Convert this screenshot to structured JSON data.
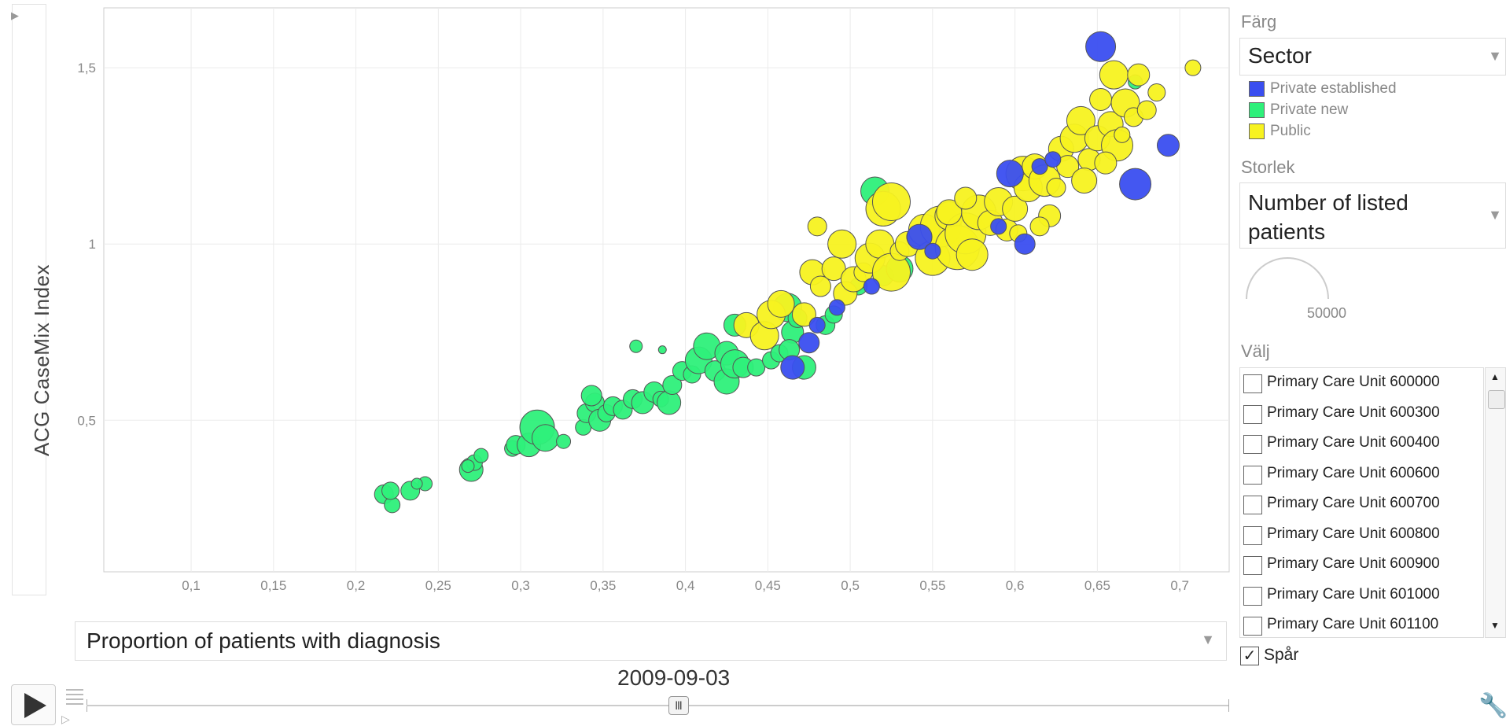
{
  "y_axis_selector": {
    "label": "ACG CaseMix Index",
    "arrow": "▶"
  },
  "x_axis_selector": {
    "label": "Proportion of patients with diagnosis",
    "arrow": "▼"
  },
  "time": {
    "date": "2009-09-03",
    "slider_thumb": "Ⅲ"
  },
  "color_panel": {
    "label": "Färg",
    "selected": "Sector",
    "arrow": "▼",
    "legend": [
      {
        "name": "Private established",
        "color": "#3a4ef0"
      },
      {
        "name": "Private new",
        "color": "#2ef07a"
      },
      {
        "name": "Public",
        "color": "#f7f220"
      }
    ]
  },
  "size_panel": {
    "label": "Storlek",
    "selected": "Number of listed patients",
    "arrow": "▼",
    "reference_value": "50000"
  },
  "select_panel": {
    "label": "Välj",
    "items": [
      "Primary Care Unit 600000",
      "Primary Care Unit 600300",
      "Primary Care Unit 600400",
      "Primary Care Unit 600600",
      "Primary Care Unit 600700",
      "Primary Care Unit 600800",
      "Primary Care Unit 600900",
      "Primary Care Unit 601000",
      "Primary Care Unit 601100"
    ],
    "scroll_up": "▲",
    "scroll_down": "▼"
  },
  "trails": {
    "label": "Spår",
    "checked": "✓"
  },
  "tools_icon": "wrench-icon",
  "chart_data": {
    "type": "scatter",
    "title": "",
    "xlabel": "Proportion of patients with diagnosis",
    "ylabel": "ACG CaseMix Index",
    "xlim": [
      0.047,
      0.73
    ],
    "ylim": [
      0.07,
      1.67
    ],
    "grid": true,
    "x_ticks": [
      0.1,
      0.15,
      0.2,
      0.25,
      0.3,
      0.35,
      0.4,
      0.45,
      0.5,
      0.55,
      0.6,
      0.65,
      0.7
    ],
    "x_tick_labels": [
      "0,1",
      "0,15",
      "0,2",
      "0,25",
      "0,3",
      "0,35",
      "0,4",
      "0,45",
      "0,5",
      "0,55",
      "0,6",
      "0,65",
      "0,7"
    ],
    "y_ticks": [
      0.5,
      1.0,
      1.5
    ],
    "y_tick_labels": [
      "0,5",
      "1",
      "1,5"
    ],
    "size_encoding": "Number of listed patients",
    "color_encoding": "Sector",
    "series": [
      {
        "name": "Private new",
        "color": "#2ef07a",
        "points": [
          [
            0.217,
            0.29,
            12
          ],
          [
            0.222,
            0.26,
            10
          ],
          [
            0.221,
            0.3,
            11
          ],
          [
            0.233,
            0.3,
            12
          ],
          [
            0.242,
            0.32,
            9
          ],
          [
            0.237,
            0.32,
            7
          ],
          [
            0.27,
            0.36,
            15
          ],
          [
            0.272,
            0.38,
            10
          ],
          [
            0.268,
            0.37,
            8
          ],
          [
            0.276,
            0.4,
            9
          ],
          [
            0.295,
            0.42,
            10
          ],
          [
            0.297,
            0.43,
            12
          ],
          [
            0.305,
            0.43,
            15
          ],
          [
            0.31,
            0.48,
            22
          ],
          [
            0.315,
            0.45,
            17
          ],
          [
            0.326,
            0.44,
            9
          ],
          [
            0.338,
            0.48,
            10
          ],
          [
            0.34,
            0.52,
            12
          ],
          [
            0.345,
            0.55,
            12
          ],
          [
            0.343,
            0.57,
            13
          ],
          [
            0.348,
            0.5,
            14
          ],
          [
            0.352,
            0.52,
            11
          ],
          [
            0.356,
            0.54,
            12
          ],
          [
            0.362,
            0.53,
            12
          ],
          [
            0.37,
            0.71,
            8
          ],
          [
            0.386,
            0.7,
            5
          ],
          [
            0.368,
            0.56,
            12
          ],
          [
            0.374,
            0.55,
            14
          ],
          [
            0.381,
            0.58,
            13
          ],
          [
            0.385,
            0.56,
            10
          ],
          [
            0.39,
            0.55,
            15
          ],
          [
            0.392,
            0.6,
            12
          ],
          [
            0.398,
            0.64,
            12
          ],
          [
            0.404,
            0.63,
            11
          ],
          [
            0.408,
            0.67,
            17
          ],
          [
            0.413,
            0.71,
            17
          ],
          [
            0.418,
            0.64,
            13
          ],
          [
            0.425,
            0.61,
            16
          ],
          [
            0.425,
            0.69,
            15
          ],
          [
            0.43,
            0.66,
            18
          ],
          [
            0.435,
            0.65,
            13
          ],
          [
            0.43,
            0.77,
            14
          ],
          [
            0.443,
            0.65,
            11
          ],
          [
            0.452,
            0.67,
            11
          ],
          [
            0.457,
            0.69,
            11
          ],
          [
            0.462,
            0.82,
            18
          ],
          [
            0.465,
            0.75,
            14
          ],
          [
            0.463,
            0.7,
            13
          ],
          [
            0.468,
            0.79,
            12
          ],
          [
            0.472,
            0.65,
            15
          ],
          [
            0.485,
            0.77,
            12
          ],
          [
            0.49,
            0.8,
            11
          ],
          [
            0.505,
            0.88,
            11
          ],
          [
            0.52,
            0.91,
            13
          ],
          [
            0.53,
            0.93,
            17
          ],
          [
            0.515,
            1.15,
            18
          ],
          [
            0.673,
            1.46,
            9
          ]
        ]
      },
      {
        "name": "Public",
        "color": "#f7f220",
        "points": [
          [
            0.437,
            0.77,
            16
          ],
          [
            0.448,
            0.74,
            18
          ],
          [
            0.452,
            0.8,
            18
          ],
          [
            0.458,
            0.83,
            17
          ],
          [
            0.472,
            0.8,
            15
          ],
          [
            0.477,
            0.92,
            16
          ],
          [
            0.482,
            0.88,
            13
          ],
          [
            0.49,
            0.93,
            15
          ],
          [
            0.495,
            1.0,
            18
          ],
          [
            0.497,
            0.86,
            15
          ],
          [
            0.502,
            0.9,
            16
          ],
          [
            0.508,
            0.92,
            12
          ],
          [
            0.512,
            0.96,
            19
          ],
          [
            0.518,
            1.0,
            18
          ],
          [
            0.52,
            1.1,
            22
          ],
          [
            0.525,
            1.12,
            24
          ],
          [
            0.525,
            0.92,
            24
          ],
          [
            0.53,
            0.98,
            12
          ],
          [
            0.535,
            1.0,
            16
          ],
          [
            0.54,
            1.02,
            12
          ],
          [
            0.545,
            1.04,
            20
          ],
          [
            0.55,
            0.96,
            22
          ],
          [
            0.555,
            1.05,
            26
          ],
          [
            0.56,
            1.08,
            18
          ],
          [
            0.565,
            0.99,
            28
          ],
          [
            0.57,
            1.03,
            26
          ],
          [
            0.574,
            0.97,
            20
          ],
          [
            0.578,
            1.09,
            22
          ],
          [
            0.585,
            1.06,
            16
          ],
          [
            0.59,
            1.12,
            18
          ],
          [
            0.595,
            1.04,
            14
          ],
          [
            0.6,
            1.1,
            16
          ],
          [
            0.605,
            1.2,
            22
          ],
          [
            0.608,
            1.16,
            18
          ],
          [
            0.612,
            1.22,
            16
          ],
          [
            0.618,
            1.18,
            20
          ],
          [
            0.621,
            1.08,
            14
          ],
          [
            0.625,
            1.16,
            12
          ],
          [
            0.628,
            1.27,
            16
          ],
          [
            0.632,
            1.22,
            14
          ],
          [
            0.636,
            1.3,
            18
          ],
          [
            0.64,
            1.35,
            18
          ],
          [
            0.645,
            1.24,
            14
          ],
          [
            0.65,
            1.3,
            16
          ],
          [
            0.652,
            1.41,
            14
          ],
          [
            0.658,
            1.34,
            16
          ],
          [
            0.662,
            1.28,
            20
          ],
          [
            0.66,
            1.48,
            18
          ],
          [
            0.667,
            1.4,
            18
          ],
          [
            0.672,
            1.36,
            12
          ],
          [
            0.675,
            1.48,
            14
          ],
          [
            0.68,
            1.38,
            12
          ],
          [
            0.686,
            1.43,
            11
          ],
          [
            0.708,
            1.5,
            10
          ],
          [
            0.665,
            1.31,
            10
          ],
          [
            0.655,
            1.23,
            14
          ],
          [
            0.642,
            1.18,
            16
          ],
          [
            0.615,
            1.05,
            12
          ],
          [
            0.602,
            1.03,
            11
          ],
          [
            0.56,
            1.09,
            16
          ],
          [
            0.57,
            1.13,
            14
          ],
          [
            0.48,
            1.05,
            12
          ]
        ]
      },
      {
        "name": "Private established",
        "color": "#3a4ef0",
        "points": [
          [
            0.465,
            0.65,
            15
          ],
          [
            0.475,
            0.72,
            13
          ],
          [
            0.48,
            0.77,
            10
          ],
          [
            0.492,
            0.82,
            10
          ],
          [
            0.513,
            0.88,
            10
          ],
          [
            0.542,
            1.02,
            16
          ],
          [
            0.55,
            0.98,
            10
          ],
          [
            0.59,
            1.05,
            10
          ],
          [
            0.597,
            1.2,
            17
          ],
          [
            0.606,
            1.0,
            13
          ],
          [
            0.615,
            1.22,
            10
          ],
          [
            0.623,
            1.24,
            10
          ],
          [
            0.652,
            1.56,
            19
          ],
          [
            0.673,
            1.17,
            20
          ],
          [
            0.693,
            1.28,
            14
          ]
        ]
      }
    ]
  }
}
